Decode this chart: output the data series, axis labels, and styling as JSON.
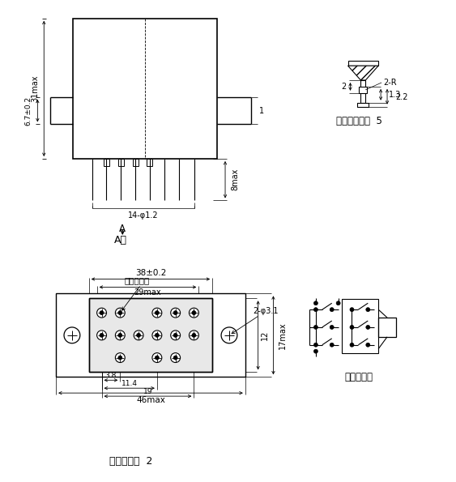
{
  "bg_color": "#ffffff",
  "line_color": "#000000",
  "fig_width": 5.63,
  "fig_height": 5.95,
  "annotations": {
    "dim_31max": "31max",
    "dim_6_7": "6.7±0.2",
    "dim_8max": "8max",
    "dim_14phi": "14-φ1.2",
    "arrow_A": "A",
    "label_Axiang": "A向",
    "dim_38": "38±0.2",
    "dim_29max": "29max",
    "label_insulator": "着色绵缘子",
    "dim_2phi31": "2-φ3.1",
    "dim_12": "12",
    "dim_17max": "17max",
    "dim_3_8": "3.8",
    "dim_11_4": "11.4",
    "dim_19": "19",
    "dim_46max": "46max",
    "label_mount": "安装方式：  2",
    "label_terminal": "引出端型式：  5",
    "dim_2R": "2-R",
    "dim_1_3": "1.3",
    "dim_2_2": "2.2",
    "dim_2": "2",
    "dim_1": "1",
    "label_circuit": "底视电路图"
  }
}
